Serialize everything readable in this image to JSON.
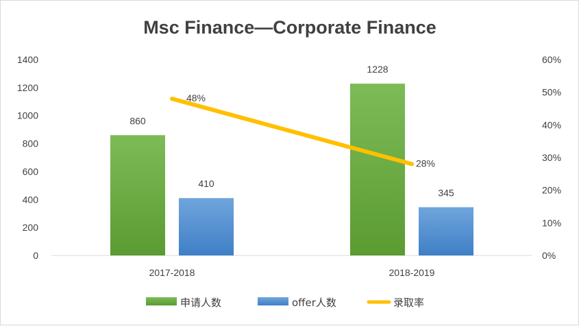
{
  "chart_data": {
    "type": "bar",
    "title": "Msc Finance—Corporate Finance",
    "categories": [
      "2017-2018",
      "2018-2019"
    ],
    "series": [
      {
        "name": "申请人数",
        "type": "bar",
        "axis": "left",
        "color": "#6aaa3f",
        "values": [
          860,
          1228
        ],
        "labels": [
          "860",
          "1228"
        ]
      },
      {
        "name": "offer人数",
        "type": "bar",
        "axis": "left",
        "color": "#4a8bd0",
        "values": [
          410,
          345
        ],
        "labels": [
          "410",
          "345"
        ]
      },
      {
        "name": "录取率",
        "type": "line",
        "axis": "right",
        "color": "#ffc000",
        "values": [
          48,
          28
        ],
        "labels": [
          "48%",
          "28%"
        ]
      }
    ],
    "ylim": [
      0,
      1400
    ],
    "yticks": [
      "0",
      "200",
      "400",
      "600",
      "800",
      "1000",
      "1200",
      "1400"
    ],
    "y2lim": [
      0,
      60
    ],
    "y2ticks": [
      "0%",
      "10%",
      "20%",
      "30%",
      "40%",
      "50%",
      "60%"
    ],
    "legend": "bottom",
    "grid": false
  }
}
